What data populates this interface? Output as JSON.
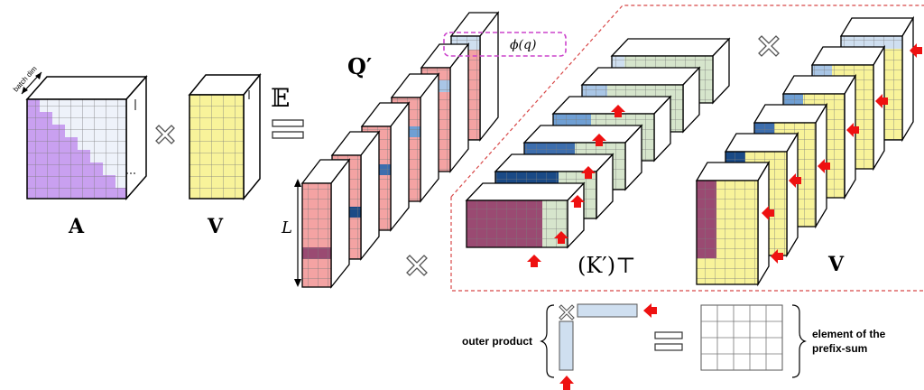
{
  "labels": {
    "batch_dim": "batch dim",
    "matrix_A": "A",
    "matrix_V_left": "V",
    "expectation": "𝔼",
    "Q_prime": "Q′",
    "L": "L",
    "phi_q": "ϕ(q)",
    "K_prime_T": "(K′)⊤",
    "V_right": "V",
    "outer_product": "outer product",
    "element_line1": "element of the",
    "element_line2": "prefix-sum"
  },
  "colors": {
    "purple": "#c9a0f0",
    "lavender_white": "#eef2fa",
    "yellow": "#f8f39a",
    "pink": "#f4a3a3",
    "green": "#d6e5cc",
    "maroon": "#9a4a72",
    "navy": "#1a4a86",
    "mid_blue": "#4f7ebc",
    "light_blue": "#a9c6e6",
    "pale_blue": "#cfdff0",
    "red_arrow": "#ee1111",
    "dashed_red": "#d84848",
    "magenta": "#cc44cc"
  }
}
